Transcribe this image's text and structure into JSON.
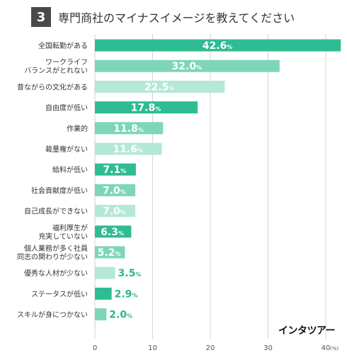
{
  "header": {
    "number": "3",
    "title": "専門商社のマイナスイメージを教えてください"
  },
  "logo": "インタツアー",
  "colors": {
    "dark": "#2ebc93",
    "medium": "#7dd6b9",
    "light": "#b5e8d5",
    "outside_text": "#2eb48f",
    "grid": "#d3d3d3",
    "axis_text": "#555555"
  },
  "chart_data": {
    "type": "bar",
    "orientation": "horizontal",
    "categories": [
      [
        "全国転勤がある"
      ],
      [
        "ワークライフ",
        "バランスがとれない"
      ],
      [
        "昔ながらの文化がある"
      ],
      [
        "自由度が低い"
      ],
      [
        "作業的"
      ],
      [
        "裁量権がない"
      ],
      [
        "給料が低い"
      ],
      [
        "社会貢献度が低い"
      ],
      [
        "自己成長ができない"
      ],
      [
        "福利厚生が",
        "充実していない"
      ],
      [
        "個人業務が多く社員",
        "同志の関わりが少ない"
      ],
      [
        "優秀な人材が少ない"
      ],
      [
        "ステータスが低い"
      ],
      [
        "スキルが身につかない"
      ]
    ],
    "values": [
      42.6,
      32.0,
      22.5,
      17.8,
      11.8,
      11.6,
      7.1,
      7.0,
      7.0,
      6.3,
      5.2,
      3.5,
      2.9,
      2.0
    ],
    "value_labels": [
      "42.6",
      "32.0",
      "22.5",
      "17.8",
      "11.8",
      "11.6",
      "7.1",
      "7.0",
      "7.0",
      "6.3",
      "5.2",
      "3.5",
      "2.9",
      "2.0"
    ],
    "value_unit": "%",
    "bar_shades": [
      "dark",
      "medium",
      "light",
      "dark",
      "medium",
      "light",
      "dark",
      "medium",
      "light",
      "dark",
      "medium",
      "light",
      "dark",
      "medium"
    ],
    "x_ticks": [
      0,
      10,
      20,
      30,
      40
    ],
    "x_tick_labels": [
      "0",
      "10",
      "20",
      "30",
      "40"
    ],
    "x_unit_label": "(%)",
    "xlim": [
      0,
      40
    ],
    "grid": true
  }
}
